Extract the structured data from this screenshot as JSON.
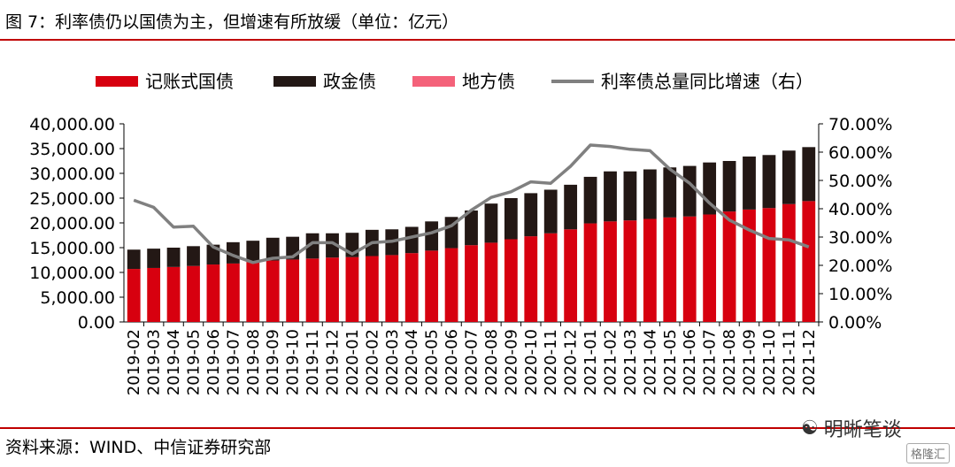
{
  "figure_title": "图 7：利率债仍以国债为主，但增速有所放缓（单位：亿元）",
  "source_note": "资料来源：WIND、中信证券研究部",
  "watermark": {
    "account": "明晰笔谈",
    "logo_text": "格隆汇"
  },
  "colors": {
    "national_debt": "#d7000f",
    "policy_bank_debt": "#231815",
    "local_gov_debt": "#f4627a",
    "growth_line": "#808080",
    "accent": "#c00000"
  },
  "chart_data": {
    "type": "bar",
    "stacked": true,
    "title": "",
    "xlabel": "",
    "ylabel": "",
    "categories": [
      "2019-02",
      "2019-03",
      "2019-04",
      "2019-05",
      "2019-06",
      "2019-07",
      "2019-08",
      "2019-09",
      "2019-10",
      "2019-11",
      "2019-12",
      "2020-01",
      "2020-02",
      "2020-03",
      "2020-04",
      "2020-05",
      "2020-06",
      "2020-07",
      "2020-08",
      "2020-09",
      "2020-10",
      "2020-11",
      "2020-12",
      "2021-01",
      "2021-02",
      "2021-03",
      "2021-04",
      "2021-05",
      "2021-06",
      "2021-07",
      "2021-08",
      "2021-09",
      "2021-10",
      "2021-11",
      "2021-12"
    ],
    "series": [
      {
        "name": "记账式国债",
        "values": [
          10700,
          10900,
          11100,
          11300,
          11600,
          11800,
          12100,
          12400,
          12600,
          12800,
          13000,
          13100,
          13300,
          13500,
          13900,
          14400,
          14900,
          15500,
          16000,
          16700,
          17300,
          17900,
          18700,
          19900,
          20300,
          20500,
          20800,
          21100,
          21300,
          21700,
          22300,
          22700,
          23000,
          23800,
          24400
        ]
      },
      {
        "name": "政金债",
        "values": [
          3900,
          3900,
          3900,
          4000,
          4000,
          4300,
          4300,
          4600,
          4600,
          5100,
          4900,
          4900,
          5300,
          5200,
          5300,
          5900,
          6300,
          7000,
          7900,
          8300,
          8700,
          8800,
          9000,
          9400,
          10100,
          9900,
          10000,
          10100,
          10200,
          10500,
          10200,
          10700,
          10700,
          10800,
          10900
        ]
      },
      {
        "name": "地方债",
        "values": [
          0,
          0,
          0,
          0,
          0,
          0,
          0,
          0,
          0,
          0,
          0,
          0,
          0,
          0,
          0,
          0,
          0,
          0,
          0,
          0,
          0,
          0,
          0,
          0,
          0,
          0,
          0,
          0,
          0,
          0,
          0,
          0,
          0,
          0,
          0
        ]
      }
    ],
    "line_series": {
      "name": "利率债总量同比增速（右）",
      "axis": "right",
      "unit": "%",
      "values": [
        43.0,
        40.5,
        33.5,
        33.8,
        26.5,
        23.5,
        21.0,
        22.5,
        23.0,
        28.0,
        28.0,
        24.0,
        28.0,
        28.5,
        30.0,
        31.5,
        34.0,
        39.5,
        44.0,
        46.0,
        49.5,
        49.0,
        55.0,
        62.5,
        62.0,
        61.0,
        60.5,
        54.0,
        49.0,
        42.0,
        36.0,
        32.5,
        29.5,
        29.0,
        26.5
      ]
    },
    "y_left": {
      "min": 0,
      "max": 40000,
      "ticks": [
        "0.00",
        "5,000.00",
        "10,000.00",
        "15,000.00",
        "20,000.00",
        "25,000.00",
        "30,000.00",
        "35,000.00",
        "40,000.00"
      ]
    },
    "y_right": {
      "min": 0,
      "max": 70,
      "ticks": [
        "0.00%",
        "10.00%",
        "20.00%",
        "30.00%",
        "40.00%",
        "50.00%",
        "60.00%",
        "70.00%"
      ]
    },
    "grid": false,
    "legend_position": "top"
  }
}
